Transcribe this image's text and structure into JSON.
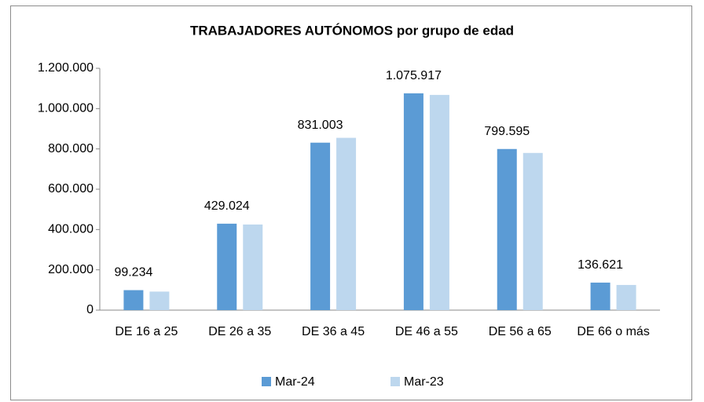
{
  "chart_data": {
    "type": "bar",
    "title": "TRABAJADORES AUTÓNOMOS por grupo de edad",
    "categories": [
      "DE 16 a 25",
      "DE 26 a 35",
      "DE 36 a 45",
      "DE 46 a 55",
      "DE 56 a 65",
      "DE 66 o más"
    ],
    "series": [
      {
        "name": "Mar-24",
        "color": "#5b9bd5",
        "values": [
          99234,
          429024,
          831003,
          1075917,
          799595,
          136621
        ],
        "value_labels": [
          "99.234",
          "429.024",
          "831.003",
          "1.075.917",
          "799.595",
          "136.621"
        ]
      },
      {
        "name": "Mar-23",
        "color": "#bdd7ee",
        "values": [
          92000,
          425000,
          855000,
          1068000,
          780000,
          125000
        ]
      }
    ],
    "ylim": [
      0,
      1200000
    ],
    "yticks": [
      0,
      {
        "value": 200000,
        "label": "200.000"
      },
      {
        "value": 400000,
        "label": "400.000"
      },
      {
        "value": 600000,
        "label": "600.000"
      },
      {
        "value": 800000,
        "label": "800.000"
      },
      {
        "value": 1000000,
        "label": "1.000.000"
      },
      {
        "value": 1200000,
        "label": "1.200.000"
      }
    ],
    "grid": false,
    "legend": "bottom"
  }
}
